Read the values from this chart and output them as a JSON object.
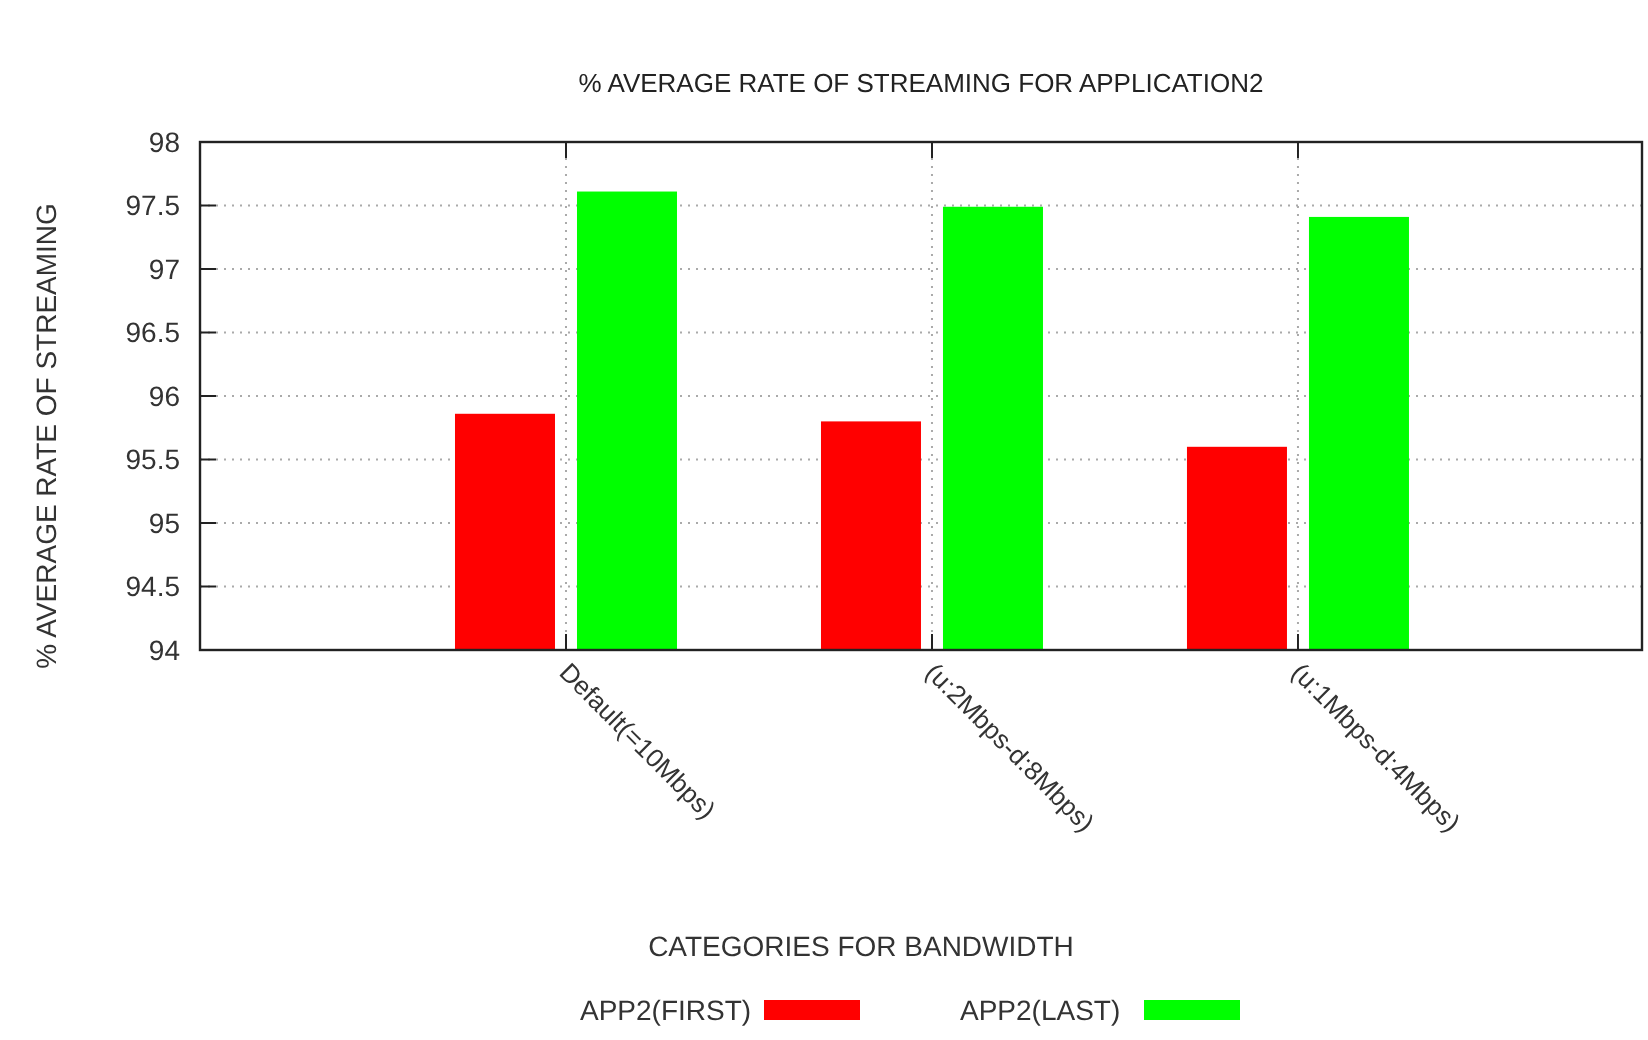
{
  "chart_data": {
    "type": "bar",
    "title": "% AVERAGE RATE OF STREAMING FOR APPLICATION2",
    "xlabel": "CATEGORIES FOR BANDWIDTH",
    "ylabel": "% AVERAGE RATE OF STREAMING",
    "categories": [
      "Default(=10Mbps)",
      "(u:2Mbps-d:8Mbps)",
      "(u:1Mbps-d:4Mbps)"
    ],
    "series": [
      {
        "name": "APP2(FIRST)",
        "color": "#ff0000",
        "values": [
          95.86,
          95.8,
          95.6
        ]
      },
      {
        "name": "APP2(LAST)",
        "color": "#00ff00",
        "values": [
          97.61,
          97.49,
          97.41
        ]
      }
    ],
    "ylim": [
      94,
      98
    ],
    "yticks": [
      94,
      94.5,
      95,
      95.5,
      96,
      96.5,
      97,
      97.5,
      98
    ],
    "grid": true,
    "legend": "bottom"
  }
}
